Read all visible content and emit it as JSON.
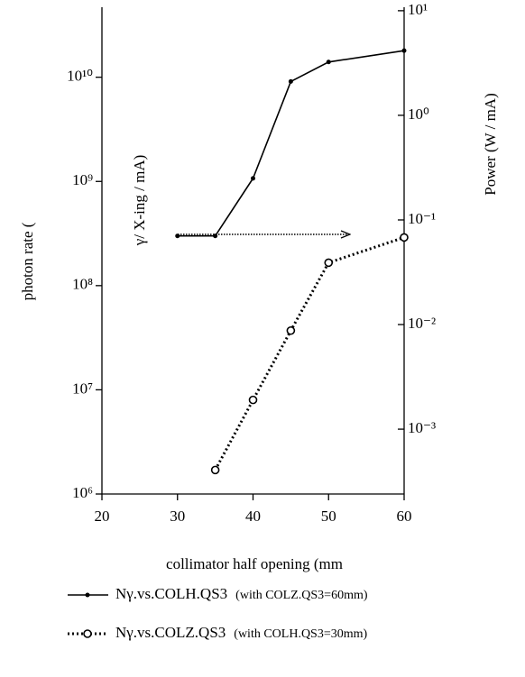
{
  "chart_data": {
    "type": "line",
    "x_label": "collimator half opening (mm",
    "y_label": "photon rate (",
    "y_label_inner": "γ/ X-ing / mA)",
    "y2_label": "Power  (W / mA)",
    "xlim": [
      20,
      60
    ],
    "xticks": [
      20,
      30,
      40,
      50,
      60
    ],
    "ylim": [
      1000000,
      47000000000
    ],
    "log_y": true,
    "yticks": [
      {
        "value": 1000000,
        "label": "10⁶"
      },
      {
        "value": 10000000,
        "label": "10⁷"
      },
      {
        "value": 100000000,
        "label": "10⁸"
      },
      {
        "value": 1000000000,
        "label": "10⁹"
      },
      {
        "value": 10000000000,
        "label": "10¹⁰"
      }
    ],
    "y2lim": [
      0.00024,
      10.8
    ],
    "log_y2": true,
    "y2ticks": [
      {
        "value": 0.001,
        "label": "10⁻³"
      },
      {
        "value": 0.01,
        "label": "10⁻²"
      },
      {
        "value": 0.1,
        "label": "10⁻¹"
      },
      {
        "value": 1,
        "label": "10⁰"
      },
      {
        "value": 10,
        "label": "10¹"
      }
    ],
    "series": [
      {
        "name": "Nγ.vs.COLH.QS3",
        "note": "(with COLZ.QS3=60mm)",
        "color": "#000000",
        "dash": "solid",
        "marker": "dot",
        "x": [
          30,
          35,
          40,
          45,
          50,
          60
        ],
        "values": [
          300000000,
          300000000,
          1070000000,
          9100000000,
          14000000000,
          18000000000
        ]
      },
      {
        "name": "Nγ.vs.COLZ.QS3",
        "note": "(with COLH.QS3=30mm)",
        "color": "#000000",
        "dash": "dotted",
        "marker": "circle",
        "x": [
          35,
          40,
          45,
          50,
          60
        ],
        "values": [
          1700000,
          8000000,
          37000000,
          166000000,
          290000000
        ]
      }
    ]
  }
}
